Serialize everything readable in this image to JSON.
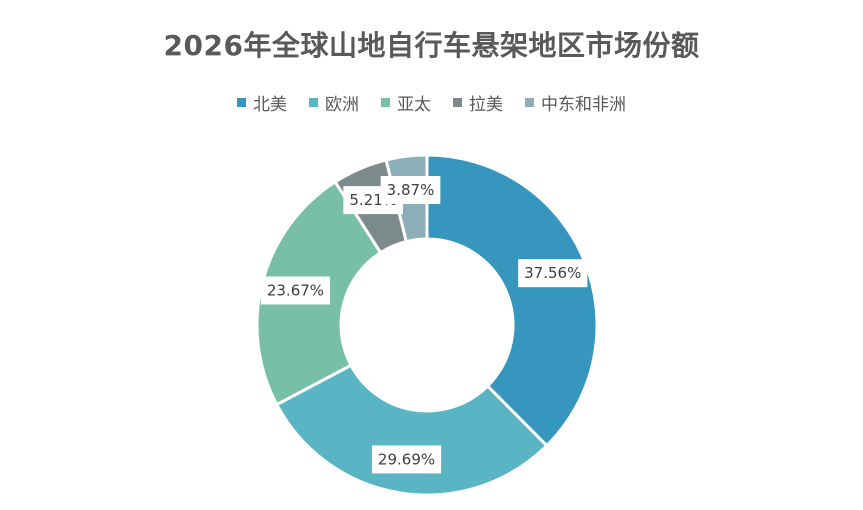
{
  "chart_data": {
    "type": "pie",
    "title": "2026年全球山地自行车悬架地区市场份额",
    "legend_position": "top",
    "donut": true,
    "categories": [
      "北美",
      "欧洲",
      "亚太",
      "拉美",
      "中东和非洲"
    ],
    "values": [
      37.56,
      29.69,
      23.67,
      5.21,
      3.87
    ],
    "data_labels": [
      "37.56%",
      "29.69%",
      "23.67%",
      "5.21%",
      "3.87%"
    ],
    "colors": [
      "#3796BD",
      "#59B5C3",
      "#77BFA7",
      "#7C8A8C",
      "#8CAEB9"
    ]
  }
}
